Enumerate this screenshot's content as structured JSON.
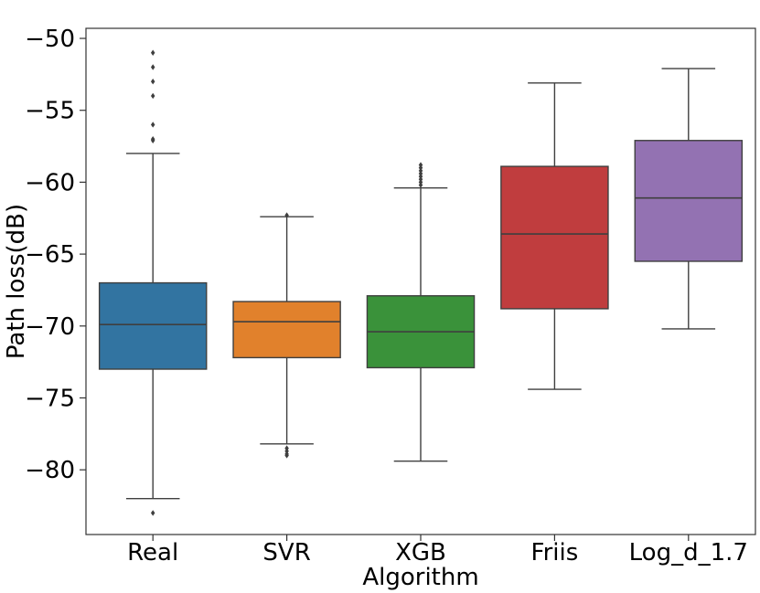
{
  "chart_data": {
    "type": "box",
    "xlabel": "Algorithm",
    "ylabel": "Path loss(dB)",
    "ylim": [
      -84.5,
      -49.3
    ],
    "yticks": [
      "−80",
      "−75",
      "−70",
      "−65",
      "−60",
      "−55",
      "−50"
    ],
    "ytick_values": [
      -80,
      -75,
      -70,
      -65,
      -60,
      -55,
      -50
    ],
    "grid": false,
    "categories": [
      "Real",
      "SVR",
      "XGB",
      "Friis",
      "Log_d_1.7"
    ],
    "boxes": [
      {
        "category": "Real",
        "color": "#3274a1",
        "whisker_low": -82.0,
        "q1": -73.0,
        "median": -69.9,
        "q3": -67.0,
        "whisker_high": -58.0,
        "outliers": [
          -51.0,
          -52.0,
          -53.0,
          -54.0,
          -56.0,
          -57.0,
          -57.1,
          -83.0
        ]
      },
      {
        "category": "SVR",
        "color": "#e1812c",
        "whisker_low": -78.2,
        "q1": -72.2,
        "median": -69.7,
        "q3": -68.3,
        "whisker_high": -62.4,
        "outliers": [
          -62.3,
          -78.5,
          -78.7,
          -78.9,
          -79.0
        ]
      },
      {
        "category": "XGB",
        "color": "#3a923a",
        "whisker_low": -79.4,
        "q1": -72.9,
        "median": -70.4,
        "q3": -67.9,
        "whisker_high": -60.4,
        "outliers": [
          -60.2,
          -60.0,
          -59.8,
          -59.6,
          -59.4,
          -59.2,
          -59.0,
          -58.8
        ]
      },
      {
        "category": "Friis",
        "color": "#c03d3e",
        "whisker_low": -74.4,
        "q1": -68.8,
        "median": -63.6,
        "q3": -58.9,
        "whisker_high": -53.1,
        "outliers": []
      },
      {
        "category": "Log_d_1.7",
        "color": "#9372b2",
        "whisker_low": -70.2,
        "q1": -65.5,
        "median": -61.1,
        "q3": -57.1,
        "whisker_high": -52.1,
        "outliers": []
      }
    ]
  }
}
